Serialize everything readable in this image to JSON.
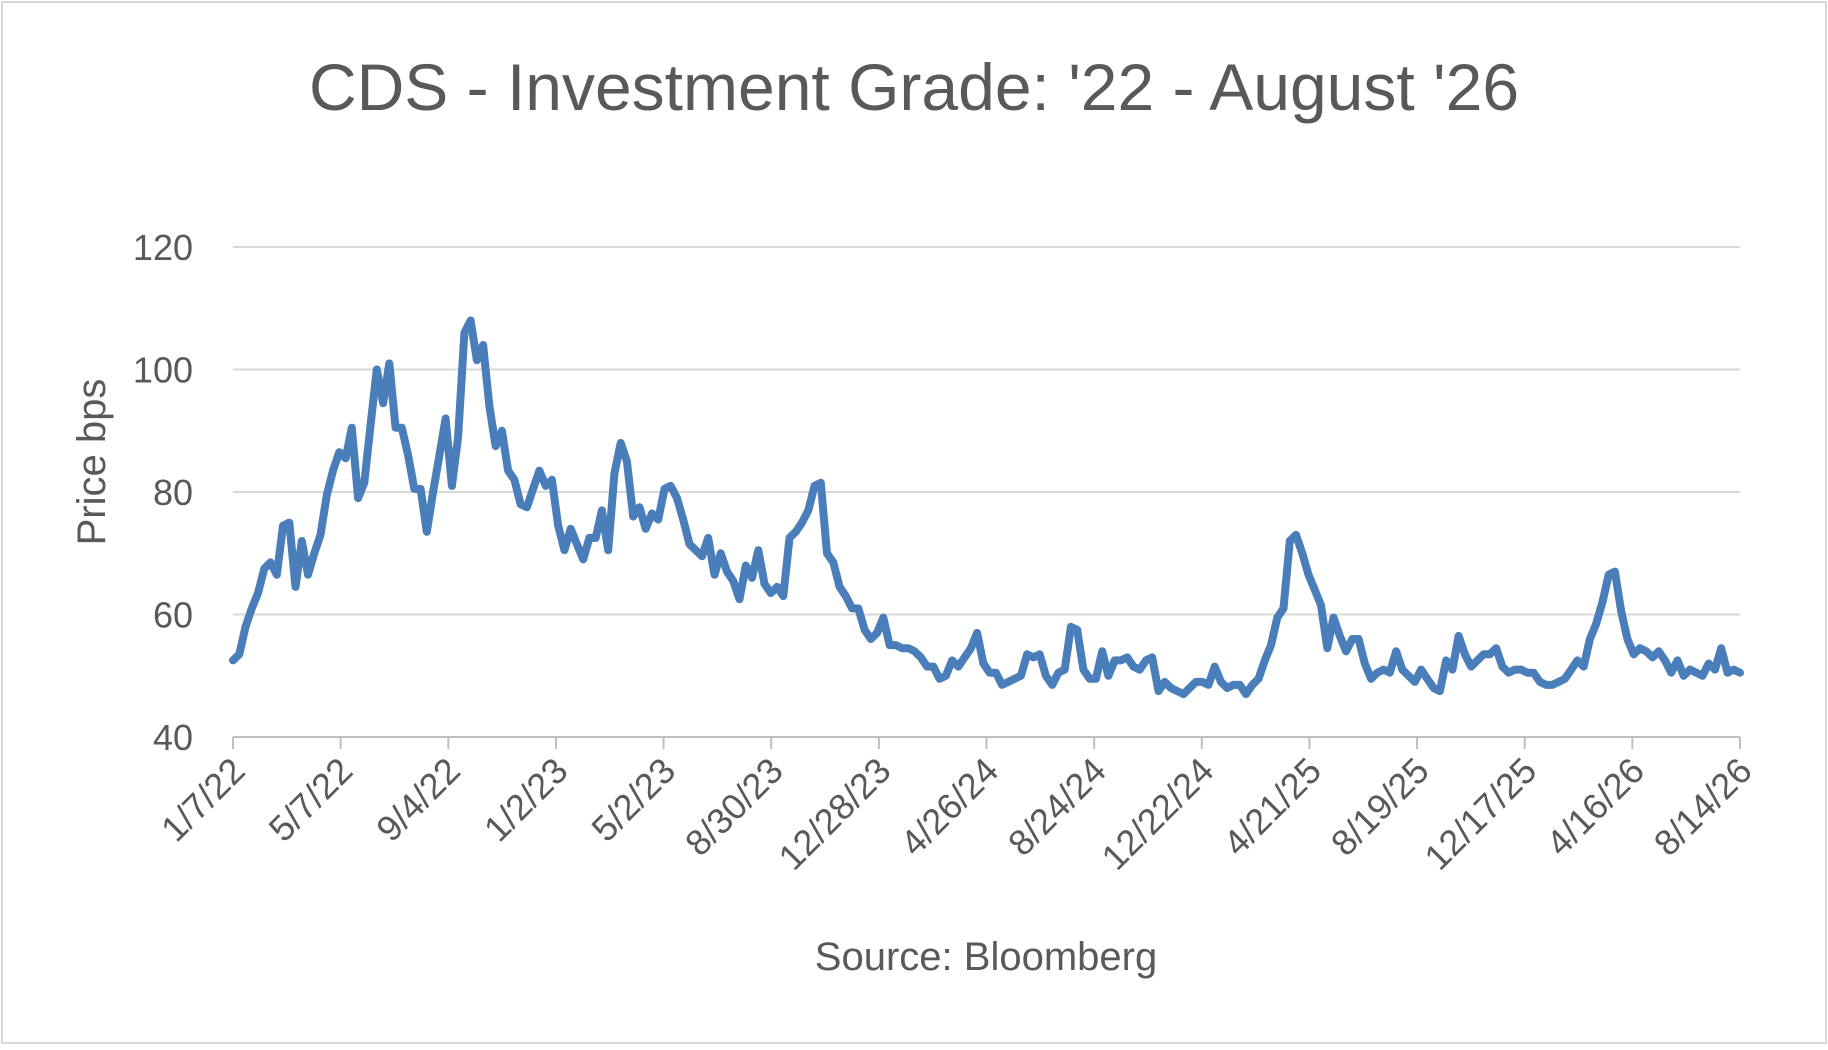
{
  "chart_data": {
    "type": "line",
    "title": "CDS - Investment Grade: '22 - August '26",
    "ylabel": "Price bps",
    "xlabel": "Source: Bloomberg",
    "ylim": [
      40,
      120
    ],
    "yticks": [
      40,
      60,
      80,
      100,
      120
    ],
    "grid": true,
    "legend": "none",
    "x_tick_labels": [
      "1/7/22",
      "5/7/22",
      "9/4/22",
      "1/2/23",
      "5/2/23",
      "8/30/23",
      "12/28/23",
      "4/26/24",
      "8/24/24",
      "12/22/24",
      "4/21/25",
      "8/19/25",
      "12/17/25",
      "4/16/26",
      "8/14/26"
    ],
    "colors": {
      "series": "#4A7EBB",
      "grid": "#D9D9D9",
      "axis": "#BFBFBF",
      "text": "#595959",
      "border": "#D9D9D9"
    },
    "series": [
      {
        "values": [
          52.5,
          53.5,
          58,
          61,
          63.5,
          67.5,
          68.5,
          66.5,
          74.5,
          75,
          64.5,
          72,
          66.5,
          70,
          73,
          79.5,
          83.5,
          86.5,
          85.5,
          90.5,
          79,
          81.5,
          91,
          100,
          94.5,
          101,
          90.5,
          90.5,
          86,
          80.5,
          80.5,
          73.5,
          80,
          86,
          92,
          81,
          89,
          106,
          108,
          101.5,
          104,
          94,
          87.5,
          90,
          83.5,
          82,
          78,
          77.5,
          80.5,
          83.5,
          81,
          82,
          74.5,
          70.5,
          74,
          71.5,
          69,
          72.5,
          72.5,
          77,
          70.5,
          83,
          88,
          85,
          76,
          77.5,
          74,
          76.5,
          75.5,
          80.5,
          81,
          79,
          75.5,
          71.5,
          70.5,
          69.5,
          72.5,
          66.5,
          70,
          67,
          65.5,
          62.5,
          68,
          66,
          70.5,
          65,
          63.5,
          64.5,
          63,
          72.5,
          73.5,
          75,
          77,
          81,
          81.5,
          70,
          68.5,
          64.5,
          63,
          61,
          61,
          57.5,
          56,
          57,
          59.5,
          55,
          55,
          54.5,
          54.5,
          54,
          53,
          51.5,
          51.5,
          49.5,
          50,
          52.5,
          51.5,
          53,
          54.5,
          57,
          52,
          50.5,
          50.5,
          48.5,
          49,
          49.5,
          50,
          53.5,
          53,
          53.5,
          50,
          48.5,
          50.5,
          51,
          58,
          57.5,
          51,
          49.5,
          49.5,
          54,
          50,
          52.5,
          52.5,
          53,
          51.5,
          51,
          52.5,
          53,
          47.5,
          49,
          48,
          47.5,
          47,
          48,
          49,
          49,
          48.5,
          51.5,
          49,
          48,
          48.5,
          48.5,
          47,
          48.5,
          49.5,
          52.5,
          55,
          59.5,
          61,
          72,
          73,
          70,
          66.5,
          64,
          61.5,
          54.5,
          59.5,
          56.5,
          54,
          56,
          56,
          52,
          49.5,
          50.5,
          51,
          50.5,
          54,
          51,
          50,
          49,
          51,
          49.5,
          48,
          47.5,
          52.5,
          51,
          56.5,
          53.5,
          51.5,
          52.5,
          53.5,
          53.5,
          54.5,
          51.5,
          50.5,
          51,
          51,
          50.5,
          50.5,
          49,
          48.5,
          48.5,
          49,
          49.5,
          51,
          52.5,
          51.5,
          56,
          58.5,
          62,
          66.5,
          67,
          60.5,
          56,
          53.5,
          54.5,
          54,
          53,
          54,
          52.5,
          50.5,
          52.5,
          50,
          51,
          50.5,
          50,
          52,
          51,
          54.5,
          50.5,
          51,
          50.5
        ]
      }
    ]
  }
}
